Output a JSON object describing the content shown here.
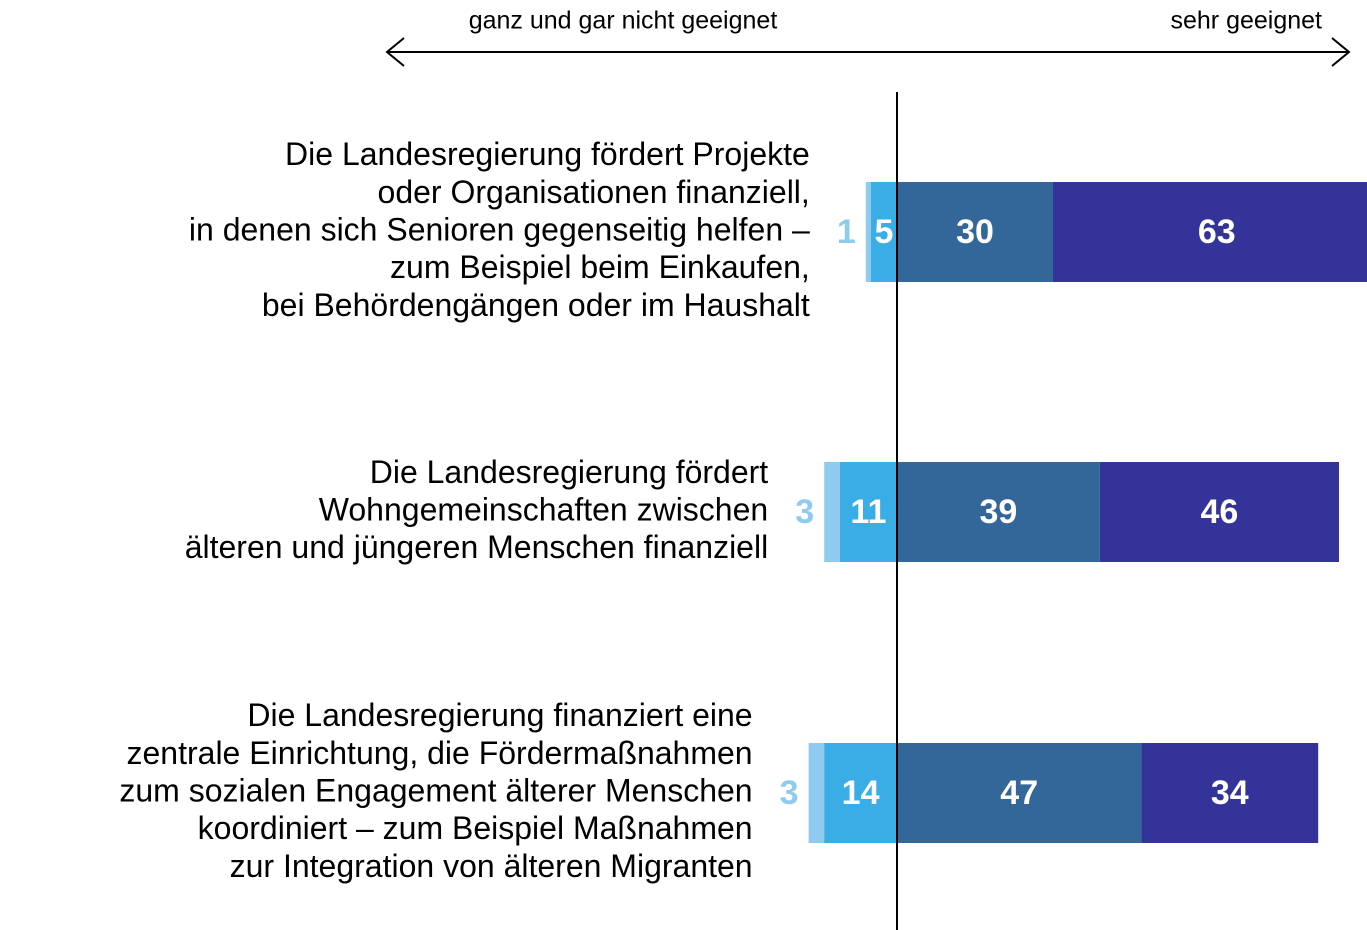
{
  "chart_data": {
    "type": "diverging-bar",
    "axis_left_label": "ganz und gar nicht geeignet",
    "axis_right_label": "sehr geeignet",
    "categories": [
      [
        "Die Landesregierung fördert Projekte",
        "oder Organisationen finanziell,",
        "in denen sich Senioren gegenseitig helfen –",
        "zum Beispiel beim Einkaufen,",
        "bei Behördengängen oder im Haushalt"
      ],
      [
        "Die Landesregierung fördert",
        "Wohngemeinschaften zwischen",
        "älteren und jüngeren Menschen finanziell"
      ],
      [
        "Die Landesregierung finanziert eine",
        "zentrale Einrichtung, die Fördermaßnahmen",
        "zum sozialen Engagement älterer Menschen",
        "koordiniert – zum Beispiel Maßnahmen",
        "zur Integration von älteren Migranten"
      ]
    ],
    "series": [
      {
        "color": "#8ecbee",
        "values": [
          1,
          3,
          3
        ]
      },
      {
        "color": "#3aace6",
        "values": [
          5,
          11,
          14
        ]
      },
      {
        "color": "#336699",
        "values": [
          30,
          39,
          47
        ]
      },
      {
        "color": "#333399",
        "values": [
          63,
          46,
          34
        ]
      }
    ],
    "negative_series": 2
  }
}
